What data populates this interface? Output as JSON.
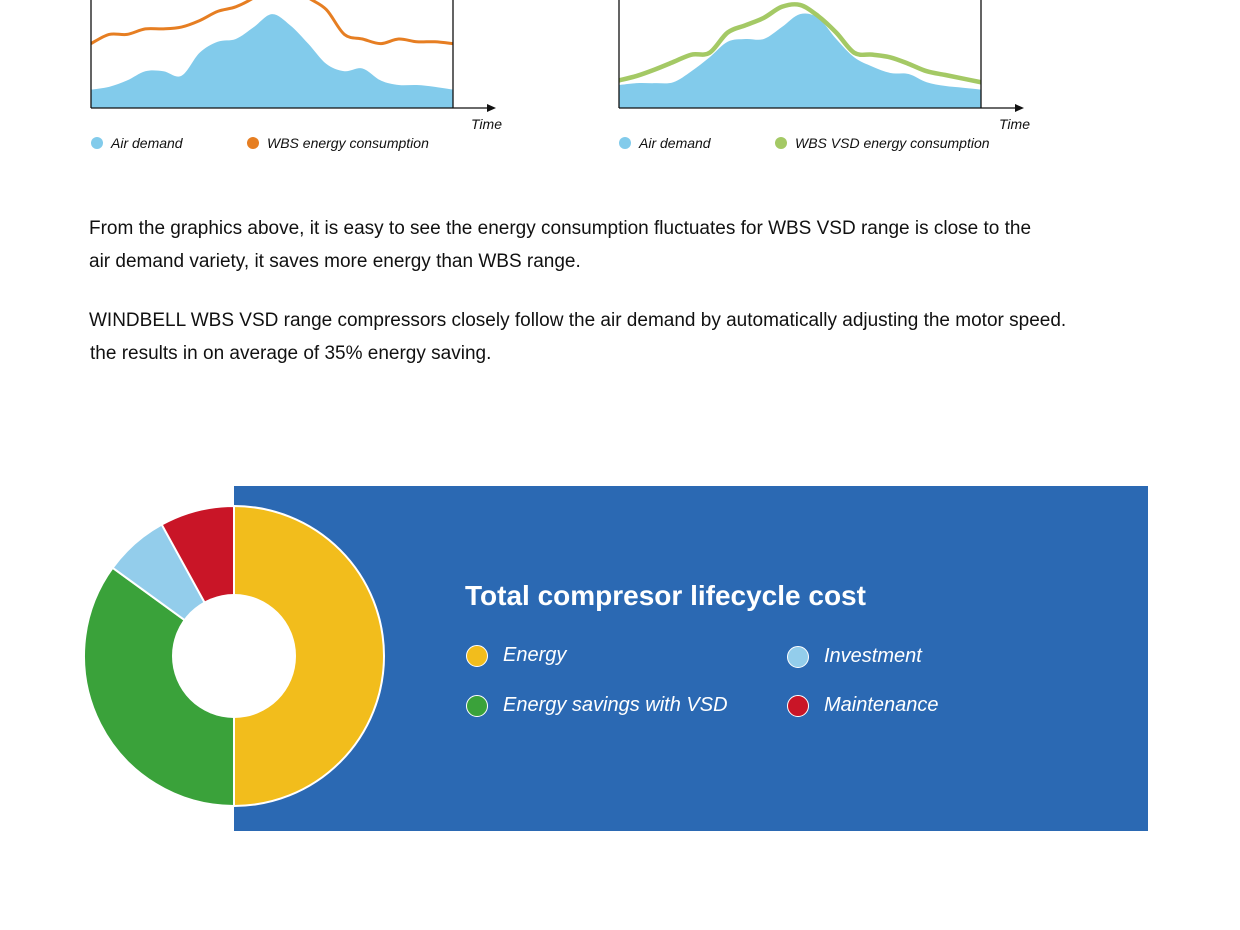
{
  "colors": {
    "air_demand": "#82cbeb",
    "wbs_energy": "#e67e22",
    "wbs_vsd_energy": "#a4c965",
    "panel_bg": "#2b69b3",
    "energy": "#f2bd1c",
    "investment": "#93cdeb",
    "energy_savings": "#3aa23a",
    "maintenance": "#c91527"
  },
  "chart_data": [
    {
      "type": "area",
      "xlabel": "Time",
      "x": [
        0,
        0.05,
        0.1,
        0.15,
        0.2,
        0.25,
        0.3,
        0.35,
        0.4,
        0.45,
        0.5,
        0.55,
        0.6,
        0.65,
        0.7,
        0.75,
        0.8,
        0.85,
        0.9,
        0.95,
        1.0
      ],
      "series": [
        {
          "name": "Air demand",
          "style": "area",
          "values": [
            0.2,
            0.23,
            0.3,
            0.4,
            0.4,
            0.35,
            0.6,
            0.72,
            0.75,
            0.88,
            1.02,
            0.9,
            0.7,
            0.48,
            0.4,
            0.43,
            0.3,
            0.25,
            0.25,
            0.23,
            0.2
          ]
        },
        {
          "name": "WBS energy consumption",
          "style": "line",
          "values": [
            0.7,
            0.8,
            0.8,
            0.86,
            0.86,
            0.88,
            0.95,
            1.05,
            1.1,
            1.2,
            1.35,
            1.35,
            1.2,
            1.07,
            0.8,
            0.75,
            0.7,
            0.75,
            0.72,
            0.72,
            0.7
          ]
        }
      ]
    },
    {
      "type": "area",
      "xlabel": "Time",
      "x": [
        0,
        0.05,
        0.1,
        0.15,
        0.2,
        0.25,
        0.3,
        0.35,
        0.4,
        0.45,
        0.5,
        0.55,
        0.6,
        0.65,
        0.7,
        0.75,
        0.8,
        0.85,
        0.9,
        0.95,
        1.0
      ],
      "series": [
        {
          "name": "Air demand",
          "style": "area",
          "values": [
            0.25,
            0.27,
            0.27,
            0.28,
            0.4,
            0.55,
            0.72,
            0.75,
            0.75,
            0.88,
            1.02,
            0.98,
            0.75,
            0.55,
            0.45,
            0.38,
            0.37,
            0.28,
            0.24,
            0.22,
            0.2
          ]
        },
        {
          "name": "WBS VSD energy consumption",
          "style": "line",
          "values": [
            0.3,
            0.35,
            0.42,
            0.5,
            0.58,
            0.6,
            0.82,
            0.9,
            0.98,
            1.1,
            1.12,
            1.0,
            0.82,
            0.6,
            0.58,
            0.55,
            0.48,
            0.4,
            0.36,
            0.32,
            0.28
          ]
        }
      ]
    },
    {
      "type": "pie",
      "title": "Total compresor lifecycle cost",
      "donut": true,
      "slices": [
        {
          "name": "Energy",
          "value": 50,
          "color_key": "energy"
        },
        {
          "name": "Energy savings with VSD",
          "value": 35,
          "color_key": "energy_savings"
        },
        {
          "name": "Investment",
          "value": 7,
          "color_key": "investment"
        },
        {
          "name": "Maintenance",
          "value": 8,
          "color_key": "maintenance"
        }
      ]
    }
  ],
  "legend1": {
    "air": "Air demand",
    "wbs": "WBS energy consumption"
  },
  "legend2": {
    "air": "Air demand",
    "vsd": "WBS VSD energy consumption"
  },
  "paragraph1": {
    "line1": "From the graphics above, it is easy to see the energy consumption fluctuates for WBS VSD range is close to the",
    "line2": "air demand variety, it saves more energy than WBS range."
  },
  "paragraph2": {
    "line1": "WINDBELL WBS VSD range compressors closely follow the air demand by automatically adjusting the motor speed.",
    "line2": "the results in on average of 35% energy saving."
  },
  "pie_legend": {
    "energy": "Energy",
    "investment": "Investment",
    "savings": "Energy savings with VSD",
    "maintenance": "Maintenance"
  }
}
